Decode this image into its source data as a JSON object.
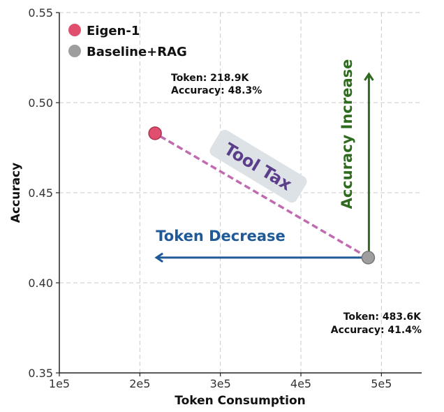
{
  "chart_data": {
    "type": "scatter",
    "xlabel": "Token Consumption",
    "ylabel": "Accuracy",
    "xlim": [
      100000,
      550000
    ],
    "ylim": [
      0.35,
      0.55
    ],
    "grid": true,
    "legend_position": "top-left",
    "x_ticks": [
      {
        "value": 100000,
        "label": "1e5"
      },
      {
        "value": 200000,
        "label": "2e5"
      },
      {
        "value": 300000,
        "label": "3e5"
      },
      {
        "value": 400000,
        "label": "4e5"
      },
      {
        "value": 500000,
        "label": "5e5"
      }
    ],
    "y_ticks": [
      {
        "value": 0.35,
        "label": "0.35"
      },
      {
        "value": 0.4,
        "label": "0.40"
      },
      {
        "value": 0.45,
        "label": "0.45"
      },
      {
        "value": 0.5,
        "label": "0.50"
      },
      {
        "value": 0.55,
        "label": "0.55"
      }
    ],
    "series": [
      {
        "name": "Eigen-1",
        "color": "#e0506e",
        "x": [
          218900
        ],
        "y": [
          0.483
        ]
      },
      {
        "name": "Baseline+RAG",
        "color": "#9e9e9e",
        "x": [
          483600
        ],
        "y": [
          0.414
        ]
      }
    ],
    "annotations": {
      "eigen_token": "Token: 218.9K",
      "eigen_accuracy": "Accuracy: 48.3%",
      "baseline_token": "Token: 483.6K",
      "baseline_accuracy": "Accuracy: 41.4%",
      "token_decrease": "Token Decrease",
      "accuracy_increase": "Accuracy Increase",
      "tool_tax": "Tool Tax"
    },
    "colors": {
      "token_arrow": "#1f5a96",
      "accuracy_arrow": "#2f6b1f",
      "tool_tax_line": "#c06bb0",
      "tool_tax_text": "#5a3e8a",
      "tool_tax_box": "#dde2e7"
    }
  }
}
